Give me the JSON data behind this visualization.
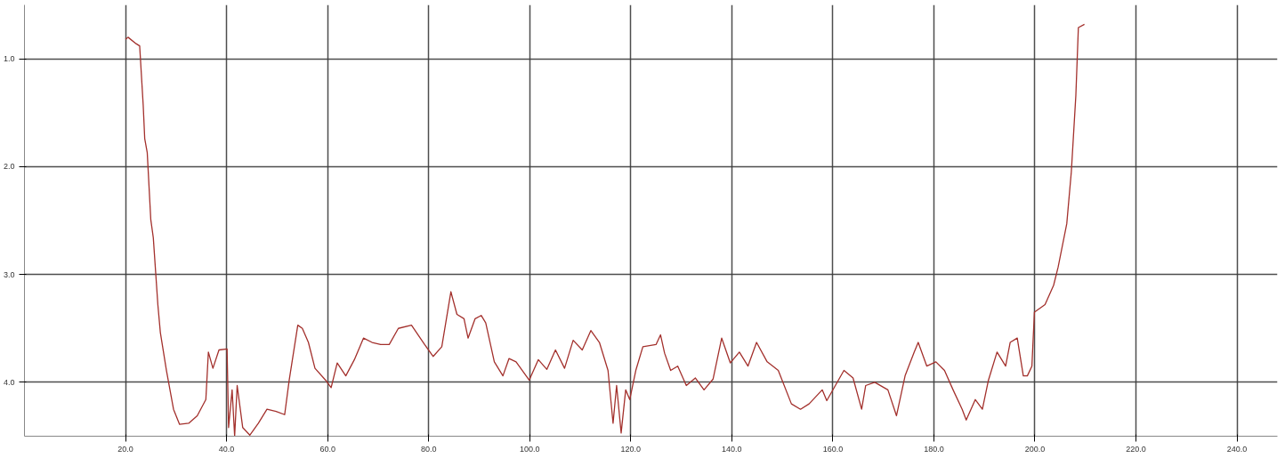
{
  "chart_data": {
    "type": "line",
    "x": [
      20,
      20.5,
      22.1,
      22.8,
      23.5,
      23.8,
      24.3,
      25,
      25.5,
      26.4,
      26.9,
      28.1,
      29.5,
      30.7,
      32.5,
      34.2,
      35.9,
      36.4,
      37.3,
      38.5,
      40.1,
      40.4,
      41.1,
      41.6,
      42.1,
      43.2,
      44.6,
      46.3,
      48,
      49.8,
      51.5,
      52.4,
      54.1,
      55,
      56.2,
      57.5,
      59.6,
      60.7,
      61.9,
      63.6,
      65.3,
      67.1,
      68.8,
      70.5,
      72.2,
      74,
      76.6,
      79.2,
      80.9,
      82.6,
      84.4,
      85.6,
      87,
      87.8,
      89.2,
      90.4,
      91.3,
      93,
      94.7,
      95.9,
      97.3,
      99.9,
      101.7,
      103.4,
      105.1,
      106.9,
      108.6,
      110.4,
      112.1,
      113.8,
      115.5,
      116.5,
      117.2,
      118.1,
      119,
      119.8,
      121,
      122.4,
      125,
      125.9,
      126.7,
      127.9,
      129.3,
      131,
      132.8,
      134.5,
      136.3,
      138,
      139.7,
      141.5,
      143.2,
      144.9,
      147,
      149.2,
      151.8,
      153.6,
      155.3,
      157.9,
      158.8,
      160.5,
      162.2,
      164,
      165.7,
      166.5,
      168.3,
      170.9,
      172.6,
      174.3,
      176.1,
      176.9,
      178.6,
      180.4,
      182.1,
      183.8,
      185.6,
      186.4,
      188.2,
      189.6,
      190.8,
      192.5,
      194.2,
      195.1,
      196.5,
      197.7,
      198.5,
      199.4,
      199.9,
      202,
      203.7,
      204.6,
      206.3,
      207.2,
      208.1,
      208.6,
      209.8
    ],
    "series": [
      {
        "color": "#a3302c",
        "values": [
          0.82,
          0.8,
          0.86,
          0.88,
          1.43,
          1.74,
          1.87,
          2.49,
          2.66,
          3.28,
          3.54,
          3.89,
          4.25,
          4.39,
          4.38,
          4.31,
          4.16,
          3.72,
          3.87,
          3.7,
          3.69,
          4.42,
          4.07,
          4.5,
          4.03,
          4.42,
          4.49,
          4.38,
          4.25,
          4.27,
          4.3,
          3.98,
          3.47,
          3.5,
          3.63,
          3.87,
          3.98,
          4.05,
          3.82,
          3.94,
          3.79,
          3.59,
          3.63,
          3.65,
          3.65,
          3.5,
          3.47,
          3.65,
          3.76,
          3.67,
          3.16,
          3.37,
          3.41,
          3.59,
          3.41,
          3.38,
          3.45,
          3.81,
          3.94,
          3.78,
          3.81,
          3.98,
          3.79,
          3.88,
          3.7,
          3.87,
          3.61,
          3.7,
          3.52,
          3.63,
          3.89,
          4.38,
          4.03,
          4.47,
          4.07,
          4.16,
          3.89,
          3.67,
          3.65,
          3.56,
          3.73,
          3.89,
          3.85,
          4.03,
          3.96,
          4.07,
          3.97,
          3.59,
          3.82,
          3.72,
          3.85,
          3.63,
          3.81,
          3.89,
          4.2,
          4.25,
          4.2,
          4.07,
          4.17,
          4.03,
          3.89,
          3.96,
          4.25,
          4.03,
          4.0,
          4.07,
          4.31,
          3.94,
          3.72,
          3.63,
          3.85,
          3.81,
          3.89,
          4.07,
          4.25,
          4.35,
          4.16,
          4.25,
          3.98,
          3.72,
          3.85,
          3.63,
          3.59,
          3.94,
          3.94,
          3.85,
          3.35,
          3.28,
          3.1,
          2.93,
          2.53,
          2.05,
          1.34,
          0.71,
          0.68
        ]
      }
    ],
    "xlim": [
      0,
      248
    ],
    "ylim": [
      4.5,
      0.5
    ],
    "xticks": [
      {
        "value": 20,
        "label": "20.0"
      },
      {
        "value": 40,
        "label": "40.0"
      },
      {
        "value": 60,
        "label": "60.0"
      },
      {
        "value": 80,
        "label": "80.0"
      },
      {
        "value": 100,
        "label": "100.0"
      },
      {
        "value": 120,
        "label": "120.0"
      },
      {
        "value": 140,
        "label": "140.0"
      },
      {
        "value": 160,
        "label": "160.0"
      },
      {
        "value": 180,
        "label": "180.0"
      },
      {
        "value": 200,
        "label": "200.0"
      },
      {
        "value": 220,
        "label": "220.0"
      },
      {
        "value": 240,
        "label": "240.0"
      }
    ],
    "yticks": [
      {
        "value": 1,
        "label": "1.0"
      },
      {
        "value": 2,
        "label": "2.0"
      },
      {
        "value": 3,
        "label": "3.0"
      },
      {
        "value": 4,
        "label": "4.0"
      }
    ],
    "grid": true,
    "line_style": "solid"
  }
}
